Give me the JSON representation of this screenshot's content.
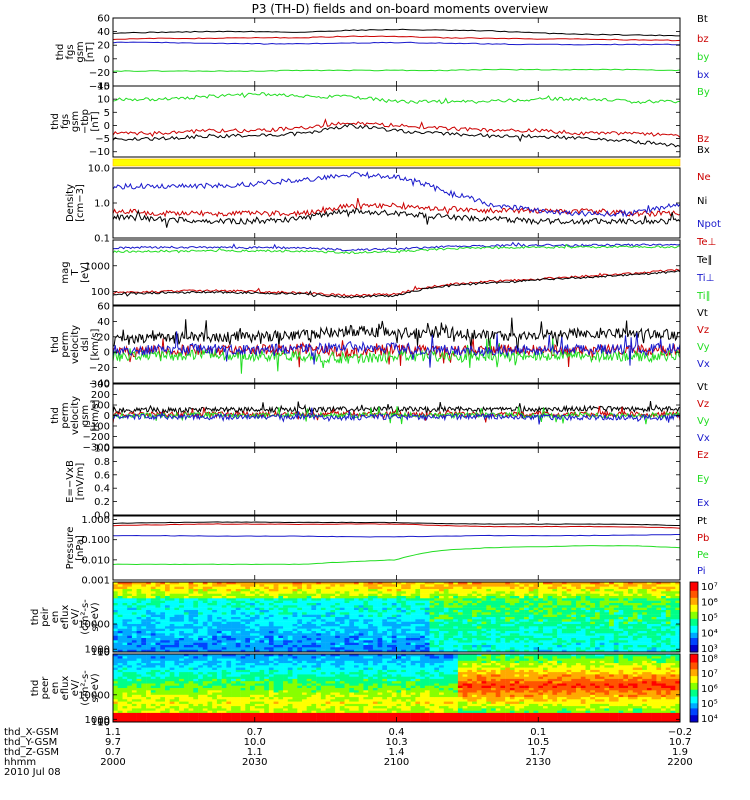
{
  "title": "P3 (TH-D) fields and on-board moments overview",
  "colors": {
    "black": "#000000",
    "red": "#cc0000",
    "green": "#22dd22",
    "blue": "#1a1acc",
    "yellow": "#ffff00",
    "yellow_border": "#ffbb00"
  },
  "spec_colorbar_labels": [
    "10⁷",
    "10⁶",
    "10⁵",
    "10⁴",
    "10³"
  ],
  "spec_colorbar2_labels": [
    "10⁸",
    "10⁷",
    "10⁶",
    "10⁵",
    "10⁴"
  ],
  "chart_data": [
    {
      "type": "line",
      "id": "fgs",
      "ylabel_lines": [
        "thd",
        "fgs",
        "gsm",
        "[nT]"
      ],
      "yticks": [
        "60",
        "40",
        "20",
        "0",
        "−20",
        "−40"
      ],
      "ylim": [
        -40,
        60
      ],
      "series": [
        {
          "name": "Bt",
          "color": "black",
          "values": [
            38,
            39,
            40,
            40,
            39,
            42,
            43,
            42,
            41,
            38,
            36,
            35,
            34
          ]
        },
        {
          "name": "bz",
          "color": "red",
          "values": [
            29,
            30,
            30,
            31,
            31,
            33,
            33,
            31,
            30,
            29,
            29,
            28,
            27
          ]
        },
        {
          "name": "by",
          "color": "green",
          "values": [
            -18,
            -18,
            -18,
            -18,
            -17,
            -17,
            -17,
            -17,
            -16,
            -16,
            -16,
            -16,
            -17
          ]
        },
        {
          "name": "bx",
          "color": "blue",
          "values": [
            24,
            24,
            23,
            22,
            22,
            23,
            24,
            23,
            22,
            21,
            21,
            21,
            21
          ]
        }
      ]
    },
    {
      "type": "line",
      "id": "fgs_hp",
      "ylabel_lines": [
        "thd",
        "fgs",
        "gsm",
        "−tbp",
        "[nT]"
      ],
      "yticks": [
        "15",
        "10",
        "5",
        "0",
        "−5",
        "−10"
      ],
      "ylim": [
        -12,
        15
      ],
      "series": [
        {
          "name": "By",
          "color": "green",
          "values": [
            10,
            10,
            11,
            12,
            11,
            11,
            9,
            9,
            9,
            10,
            10,
            9,
            9
          ]
        },
        {
          "name": "Bz",
          "color": "red",
          "values": [
            -3,
            -3,
            -2,
            -2,
            -1,
            1,
            0,
            -1,
            -2,
            -2,
            -3,
            -3,
            -4
          ]
        },
        {
          "name": "Bx",
          "color": "black",
          "values": [
            -5,
            -5,
            -4,
            -4,
            -3,
            0,
            -2,
            -3,
            -4,
            -4,
            -5,
            -6,
            -8
          ]
        }
      ]
    },
    {
      "type": "line",
      "id": "density",
      "log": true,
      "ylabel_lines": [
        "Density",
        "[cm−3]"
      ],
      "yticks": [
        "10.0",
        "1.0",
        "0.1"
      ],
      "ylim": [
        0.1,
        10
      ],
      "series": [
        {
          "name": "Ne",
          "color": "red",
          "values": [
            0.6,
            0.5,
            0.5,
            0.5,
            0.5,
            0.8,
            0.8,
            0.7,
            0.6,
            0.6,
            0.6,
            0.5,
            0.5
          ]
        },
        {
          "name": "Ni",
          "color": "black",
          "values": [
            0.4,
            0.35,
            0.3,
            0.3,
            0.35,
            0.6,
            0.5,
            0.4,
            0.35,
            0.3,
            0.3,
            0.3,
            0.3
          ]
        },
        {
          "name": "Npot",
          "color": "blue",
          "values": [
            3.0,
            3.0,
            3.1,
            3.5,
            4.5,
            6.5,
            5.8,
            2.0,
            0.9,
            0.6,
            0.5,
            0.5,
            0.9
          ]
        }
      ]
    },
    {
      "type": "line",
      "id": "temperature",
      "log": true,
      "ylabel_lines": [
        "mag",
        "T",
        "[eV]"
      ],
      "yticks": [
        "1000",
        "100"
      ],
      "ylim": [
        30,
        10000
      ],
      "series": [
        {
          "name": "Te⊥",
          "color": "red",
          "values": [
            90,
            100,
            110,
            100,
            90,
            70,
            80,
            180,
            250,
            300,
            400,
            500,
            700
          ]
        },
        {
          "name": "Te∥",
          "color": "black",
          "values": [
            80,
            90,
            95,
            90,
            80,
            60,
            70,
            160,
            220,
            280,
            350,
            450,
            600
          ]
        },
        {
          "name": "Ti⊥",
          "color": "blue",
          "values": [
            5000,
            5200,
            5200,
            5100,
            5000,
            4000,
            4500,
            5500,
            6000,
            6200,
            6300,
            6400,
            6500
          ]
        },
        {
          "name": "Ti∥",
          "color": "green",
          "values": [
            3500,
            3700,
            3800,
            3800,
            3700,
            3200,
            3500,
            4500,
            5000,
            5200,
            5300,
            5400,
            5400
          ]
        }
      ]
    },
    {
      "type": "line",
      "id": "velocity_perm",
      "ylabel_lines": [
        "thd",
        "perm",
        "velocity",
        "dsl",
        "[km/s]"
      ],
      "yticks": [
        "60",
        "40",
        "20",
        "0",
        "−20",
        "−40"
      ],
      "ylim": [
        -40,
        60
      ],
      "series": [
        {
          "name": "Vt",
          "color": "black",
          "values": [
            15,
            18,
            20,
            20,
            22,
            28,
            25,
            25,
            22,
            22,
            25,
            25,
            22
          ]
        },
        {
          "name": "Vz",
          "color": "red",
          "values": [
            0,
            2,
            3,
            2,
            5,
            -2,
            5,
            2,
            3,
            3,
            2,
            3,
            2
          ]
        },
        {
          "name": "Vy",
          "color": "green",
          "values": [
            -5,
            -5,
            -3,
            -5,
            -5,
            -8,
            -5,
            -5,
            -5,
            -4,
            -5,
            -5,
            -5
          ]
        },
        {
          "name": "Vx",
          "color": "blue",
          "values": [
            2,
            3,
            5,
            3,
            5,
            8,
            5,
            3,
            2,
            3,
            3,
            5,
            5
          ]
        }
      ]
    },
    {
      "type": "line",
      "id": "velocity_gsm",
      "ylabel_lines": [
        "thd",
        "perm",
        "velocity",
        "gsm",
        "[km/s]"
      ],
      "yticks": [
        "300",
        "200",
        "100",
        "0",
        "−100",
        "−200",
        "−300"
      ],
      "ylim": [
        -300,
        300
      ],
      "series": [
        {
          "name": "Vt",
          "color": "black",
          "values": [
            50,
            50,
            55,
            55,
            55,
            60,
            60,
            60,
            60,
            60,
            65,
            60,
            60
          ]
        },
        {
          "name": "Vz",
          "color": "red",
          "values": [
            10,
            10,
            10,
            15,
            10,
            15,
            10,
            15,
            10,
            15,
            10,
            15,
            10
          ]
        },
        {
          "name": "Vy",
          "color": "green",
          "values": [
            0,
            0,
            5,
            0,
            5,
            0,
            5,
            0,
            5,
            0,
            5,
            0,
            5
          ]
        },
        {
          "name": "Vx",
          "color": "blue",
          "values": [
            -10,
            -15,
            -10,
            -15,
            -10,
            -20,
            -10,
            -15,
            -10,
            -15,
            -20,
            -20,
            -15
          ]
        }
      ]
    },
    {
      "type": "line",
      "id": "efield",
      "ylabel_lines": [
        "E=−VxB",
        "[mV/m]"
      ],
      "yticks": [
        "1.0",
        "0.8",
        "0.6",
        "0.4",
        "0.2",
        "0.0"
      ],
      "ylim": [
        0,
        1
      ],
      "series": [
        {
          "name": "Ez",
          "color": "red",
          "values": []
        },
        {
          "name": "Ey",
          "color": "green",
          "values": []
        },
        {
          "name": "Ex",
          "color": "blue",
          "values": []
        }
      ]
    },
    {
      "type": "line",
      "id": "pressure",
      "log": true,
      "ylabel_lines": [
        "Pressure",
        "[nPa]"
      ],
      "yticks": [
        "1.000",
        "0.100",
        "0.010",
        "0.001"
      ],
      "ylim": [
        0.001,
        1.5
      ],
      "series": [
        {
          "name": "Pt",
          "color": "black",
          "values": [
            0.65,
            0.7,
            0.75,
            0.75,
            0.72,
            0.72,
            0.7,
            0.62,
            0.6,
            0.6,
            0.6,
            0.58,
            0.5
          ]
        },
        {
          "name": "Pb",
          "color": "red",
          "values": [
            0.5,
            0.55,
            0.6,
            0.6,
            0.58,
            0.6,
            0.6,
            0.5,
            0.45,
            0.45,
            0.45,
            0.43,
            0.38
          ]
        },
        {
          "name": "Pe",
          "color": "green",
          "values": [
            0.006,
            0.006,
            0.006,
            0.006,
            0.006,
            0.008,
            0.01,
            0.03,
            0.04,
            0.045,
            0.05,
            0.05,
            0.04
          ]
        },
        {
          "name": "Pi",
          "color": "blue",
          "values": [
            0.16,
            0.16,
            0.15,
            0.15,
            0.15,
            0.14,
            0.14,
            0.15,
            0.16,
            0.16,
            0.16,
            0.17,
            0.18
          ]
        }
      ]
    },
    {
      "type": "heatmap",
      "id": "ion_spec",
      "ylabel_lines": [
        "thd",
        "peir",
        "en",
        "eflux",
        "eV/",
        "(cm²-s-",
        "sr-eV)"
      ],
      "yticks": [
        "10000",
        "1000",
        "100",
        "10"
      ],
      "ylim": [
        7,
        25000
      ]
    },
    {
      "type": "heatmap",
      "id": "elec_spec",
      "ylabel_lines": [
        "thd",
        "peer",
        "en",
        "eflux",
        "eV/",
        "(cm²-s-",
        "sr-eV)"
      ],
      "yticks": [
        "10000",
        "1000",
        "100",
        "10"
      ],
      "ylim": [
        7,
        25000
      ]
    }
  ],
  "xaxis": {
    "row_labels": [
      "thd_X-GSM",
      "thd_Y-GSM",
      "thd_Z-GSM",
      "hhmm",
      "2010 Jul 08"
    ],
    "columns": [
      [
        "1.1",
        "9.7",
        "0.7",
        "2000"
      ],
      [
        "0.7",
        "10.0",
        "1.1",
        "2030"
      ],
      [
        "0.4",
        "10.3",
        "1.4",
        "2100"
      ],
      [
        "0.1",
        "10.5",
        "1.7",
        "2130"
      ],
      [
        "−0.2",
        "10.7",
        "1.9",
        "2200"
      ]
    ]
  }
}
